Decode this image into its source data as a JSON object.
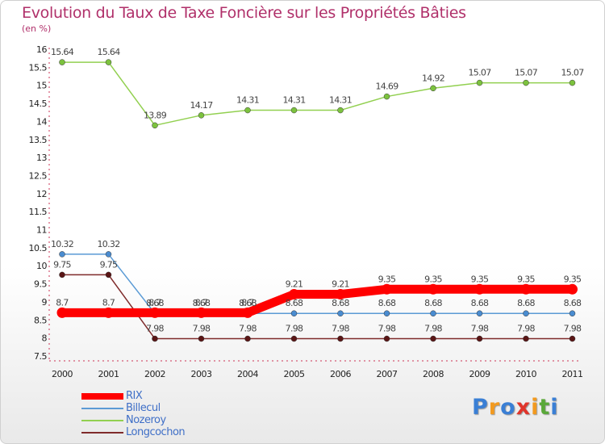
{
  "chart_data": {
    "type": "line",
    "title": "Evolution du Taux de Taxe Foncière sur les Propriétés Bâties",
    "subtitle": "(en %)",
    "xlabel": "",
    "ylabel": "",
    "x": [
      "2000",
      "2001",
      "2002",
      "2003",
      "2004",
      "2005",
      "2006",
      "2007",
      "2008",
      "2009",
      "2010",
      "2011"
    ],
    "ylim": [
      7.5,
      16
    ],
    "yticks": [
      "7.5",
      "8",
      "8.5",
      "9",
      "9.5",
      "10",
      "10.5",
      "11",
      "11.5",
      "12",
      "12.5",
      "13",
      "13.5",
      "14",
      "14.5",
      "15",
      "15.5",
      "16"
    ],
    "grid": false,
    "legend_position": "bottom-left",
    "series": [
      {
        "name": "RIX",
        "color": "#ff0000",
        "values": [
          8.7,
          8.7,
          8.7,
          8.7,
          8.7,
          9.21,
          9.21,
          9.35,
          9.35,
          9.35,
          9.35,
          9.35
        ],
        "labels": [
          "8.7",
          "8.7",
          "8.7",
          "8.7",
          "8.7",
          "9.21",
          "9.21",
          "9.35",
          "9.35",
          "9.35",
          "9.35",
          "9.35"
        ]
      },
      {
        "name": "Billecul",
        "color": "#5b9bd5",
        "values": [
          10.32,
          10.32,
          8.68,
          8.68,
          8.68,
          8.68,
          8.68,
          8.68,
          8.68,
          8.68,
          8.68,
          8.68
        ],
        "labels": [
          "10.32",
          "10.32",
          "8.68",
          "8.68",
          "8.68",
          "8.68",
          "8.68",
          "8.68",
          "8.68",
          "8.68",
          "8.68",
          "8.68"
        ]
      },
      {
        "name": "Nozeroy",
        "color": "#92d050",
        "values": [
          15.64,
          15.64,
          13.89,
          14.17,
          14.31,
          14.31,
          14.31,
          14.69,
          14.92,
          15.07,
          15.07,
          15.07
        ],
        "labels": [
          "15.64",
          "15.64",
          "13.89",
          "14.17",
          "14.31",
          "14.31",
          "14.31",
          "14.69",
          "14.92",
          "15.07",
          "15.07",
          "15.07"
        ]
      },
      {
        "name": "Longcochon",
        "color": "#7f2b2b",
        "values": [
          9.75,
          9.75,
          7.98,
          7.98,
          7.98,
          7.98,
          7.98,
          7.98,
          7.98,
          7.98,
          7.98,
          7.98
        ],
        "labels": [
          "9.75",
          "9.75",
          "7.98",
          "7.98",
          "7.98",
          "7.98",
          "7.98",
          "7.98",
          "7.98",
          "7.98",
          "7.98",
          "7.98"
        ]
      }
    ]
  },
  "logo": {
    "letters": [
      "P",
      "r",
      "o",
      "x",
      "i",
      "t",
      "i"
    ],
    "colors": [
      "#3a7fd5",
      "#f29a1f",
      "#3a7fd5",
      "#e0352b",
      "#f29a1f",
      "#5aa83a",
      "#3a7fd5"
    ]
  }
}
